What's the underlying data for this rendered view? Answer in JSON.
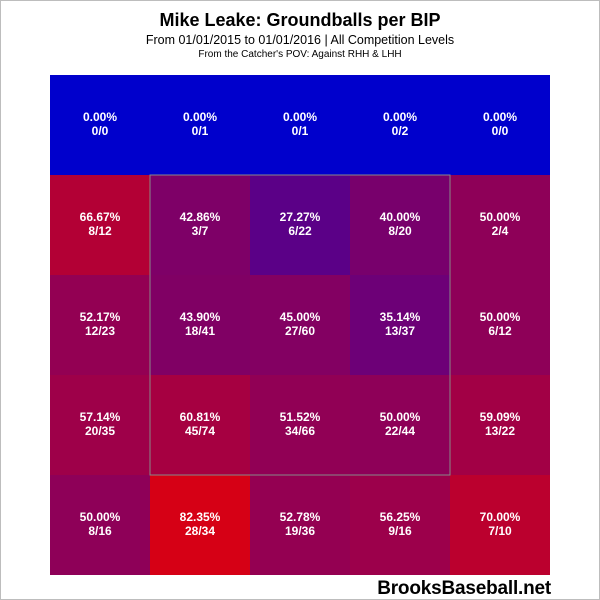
{
  "title": "Mike Leake: Groundballs per BIP",
  "subtitle": "From 01/01/2015 to 01/01/2016 | All Competition Levels",
  "note": "From the Catcher's POV:  Against RHH & LHH",
  "watermark": "BrooksBaseball.net",
  "colors": {
    "low": "#0000cc",
    "high": "#cc0000",
    "strike_zone_border": "#888888",
    "text": "#ffffff"
  },
  "chart_data": {
    "type": "heatmap",
    "rows": 5,
    "cols": 5,
    "strike_zone": {
      "rows": [
        1,
        3
      ],
      "cols": [
        1,
        3
      ]
    },
    "cells": [
      [
        {
          "pct": "0.00%",
          "frac": "0/0",
          "value": 0.0
        },
        {
          "pct": "0.00%",
          "frac": "0/1",
          "value": 0.0
        },
        {
          "pct": "0.00%",
          "frac": "0/1",
          "value": 0.0
        },
        {
          "pct": "0.00%",
          "frac": "0/2",
          "value": 0.0
        },
        {
          "pct": "0.00%",
          "frac": "0/0",
          "value": 0.0
        }
      ],
      [
        {
          "pct": "66.67%",
          "frac": "8/12",
          "value": 66.67
        },
        {
          "pct": "42.86%",
          "frac": "3/7",
          "value": 42.86
        },
        {
          "pct": "27.27%",
          "frac": "6/22",
          "value": 27.27
        },
        {
          "pct": "40.00%",
          "frac": "8/20",
          "value": 40.0
        },
        {
          "pct": "50.00%",
          "frac": "2/4",
          "value": 50.0
        }
      ],
      [
        {
          "pct": "52.17%",
          "frac": "12/23",
          "value": 52.17
        },
        {
          "pct": "43.90%",
          "frac": "18/41",
          "value": 43.9
        },
        {
          "pct": "45.00%",
          "frac": "27/60",
          "value": 45.0
        },
        {
          "pct": "35.14%",
          "frac": "13/37",
          "value": 35.14
        },
        {
          "pct": "50.00%",
          "frac": "6/12",
          "value": 50.0
        }
      ],
      [
        {
          "pct": "57.14%",
          "frac": "20/35",
          "value": 57.14
        },
        {
          "pct": "60.81%",
          "frac": "45/74",
          "value": 60.81
        },
        {
          "pct": "51.52%",
          "frac": "34/66",
          "value": 51.52
        },
        {
          "pct": "50.00%",
          "frac": "22/44",
          "value": 50.0
        },
        {
          "pct": "59.09%",
          "frac": "13/22",
          "value": 59.09
        }
      ],
      [
        {
          "pct": "50.00%",
          "frac": "8/16",
          "value": 50.0
        },
        {
          "pct": "82.35%",
          "frac": "28/34",
          "value": 82.35
        },
        {
          "pct": "52.78%",
          "frac": "19/36",
          "value": 52.78
        },
        {
          "pct": "56.25%",
          "frac": "9/16",
          "value": 56.25
        },
        {
          "pct": "70.00%",
          "frac": "7/10",
          "value": 70.0
        }
      ]
    ]
  }
}
